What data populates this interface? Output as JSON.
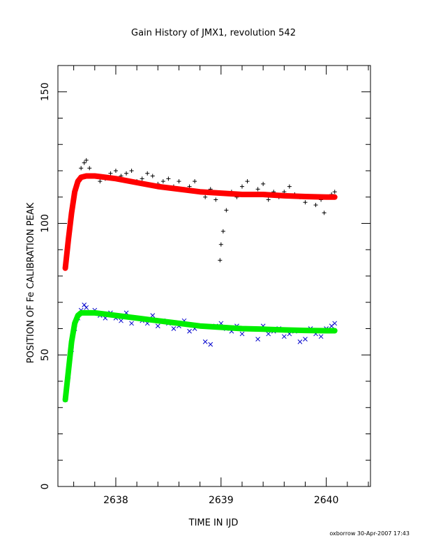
{
  "chart_data": {
    "type": "scatter",
    "title": "Gain History of JMX1, revolution 542",
    "xlabel": "TIME IN IJD",
    "ylabel": "POSITION OF Fe CALIBRATION PEAK",
    "footer": "oxborrow 30-Apr-2007 17:43",
    "xlim": [
      2637.45,
      2640.42
    ],
    "ylim": [
      0,
      160
    ],
    "x_ticks": [
      2638,
      2639,
      2640
    ],
    "x_tick_labels": [
      "2638",
      "2639",
      "2640"
    ],
    "y_ticks": [
      0,
      50,
      100,
      150
    ],
    "y_tick_labels": [
      "0",
      "50",
      "100",
      "150"
    ],
    "grid": false,
    "legend": "none",
    "colors": {
      "upper_points": "#000000",
      "upper_fit": "#ff0000",
      "lower_points": "#0000cc",
      "lower_fit": "#00ee00"
    },
    "series": [
      {
        "marker": "plus",
        "color": "#000000",
        "x": [
          2637.52,
          2637.55,
          2637.58,
          2637.61,
          2637.64,
          2637.67,
          2637.7,
          2637.72,
          2637.75,
          2637.8,
          2637.85,
          2637.9,
          2637.95,
          2638.0,
          2638.05,
          2638.1,
          2638.15,
          2638.2,
          2638.25,
          2638.3,
          2638.35,
          2638.4,
          2638.45,
          2638.5,
          2638.55,
          2638.6,
          2638.65,
          2638.7,
          2638.75,
          2638.8,
          2638.85,
          2638.9,
          2638.95,
          2638.99,
          2639.0,
          2639.02,
          2639.05,
          2639.1,
          2639.15,
          2639.2,
          2639.25,
          2639.3,
          2639.35,
          2639.4,
          2639.45,
          2639.5,
          2639.55,
          2639.6,
          2639.65,
          2639.7,
          2639.75,
          2639.8,
          2639.85,
          2639.9,
          2639.95,
          2639.98,
          2640.0,
          2640.05,
          2640.08
        ],
        "y": [
          83,
          93,
          104,
          112,
          116,
          121,
          123,
          124,
          121,
          118,
          116,
          117,
          119,
          120,
          118,
          119,
          120,
          116,
          117,
          119,
          118,
          115,
          116,
          117,
          114,
          116,
          113,
          114,
          116,
          112,
          110,
          113,
          109,
          86,
          92,
          97,
          105,
          112,
          110,
          114,
          116,
          111,
          113,
          115,
          109,
          112,
          110,
          112,
          114,
          111,
          110,
          108,
          110,
          107,
          109,
          104,
          110,
          111,
          112
        ]
      },
      {
        "marker": "line",
        "color": "#ff0000",
        "x": [
          2637.52,
          2637.55,
          2637.58,
          2637.61,
          2637.64,
          2637.67,
          2637.72,
          2637.8,
          2637.9,
          2638.0,
          2638.2,
          2638.4,
          2638.6,
          2638.8,
          2639.0,
          2639.2,
          2639.4,
          2639.6,
          2639.8,
          2640.0,
          2640.08
        ],
        "y": [
          83,
          94,
          104,
          112,
          116,
          117.5,
          118,
          118,
          117.5,
          117,
          115.5,
          114,
          113,
          112,
          111.5,
          111,
          111,
          110.5,
          110.2,
          110,
          110
        ]
      },
      {
        "marker": "cross",
        "color": "#0000cc",
        "x": [
          2637.52,
          2637.55,
          2637.58,
          2637.61,
          2637.64,
          2637.67,
          2637.7,
          2637.72,
          2637.75,
          2637.8,
          2637.85,
          2637.9,
          2637.95,
          2638.0,
          2638.05,
          2638.1,
          2638.15,
          2638.2,
          2638.25,
          2638.3,
          2638.35,
          2638.4,
          2638.45,
          2638.5,
          2638.55,
          2638.6,
          2638.65,
          2638.7,
          2638.75,
          2638.8,
          2638.85,
          2638.9,
          2638.95,
          2639.0,
          2639.05,
          2639.1,
          2639.15,
          2639.2,
          2639.25,
          2639.3,
          2639.35,
          2639.4,
          2639.45,
          2639.5,
          2639.55,
          2639.6,
          2639.65,
          2639.7,
          2639.75,
          2639.8,
          2639.85,
          2639.9,
          2639.95,
          2640.0,
          2640.05,
          2640.08
        ],
        "y": [
          33,
          42,
          52,
          60,
          64,
          67,
          69,
          68,
          66,
          67,
          65,
          64,
          66,
          64,
          63,
          66,
          62,
          64,
          63,
          62,
          65,
          61,
          63,
          62,
          60,
          61,
          63,
          59,
          60,
          61,
          55,
          54,
          61,
          62,
          60,
          59,
          61,
          58,
          60,
          60,
          56,
          61,
          58,
          59,
          60,
          57,
          58,
          59,
          55,
          56,
          60,
          58,
          57,
          60,
          61,
          62
        ]
      },
      {
        "marker": "line",
        "color": "#00ee00",
        "x": [
          2637.52,
          2637.55,
          2637.58,
          2637.61,
          2637.64,
          2637.67,
          2637.72,
          2637.8,
          2637.9,
          2638.0,
          2638.2,
          2638.4,
          2638.6,
          2638.8,
          2639.0,
          2639.2,
          2639.4,
          2639.6,
          2639.8,
          2640.0,
          2640.08
        ],
        "y": [
          33,
          44,
          55,
          62,
          65,
          66,
          66,
          66,
          65.5,
          65,
          64,
          63,
          62,
          61,
          60.5,
          60,
          59.8,
          59.5,
          59.3,
          59.2,
          59.2
        ]
      }
    ]
  }
}
